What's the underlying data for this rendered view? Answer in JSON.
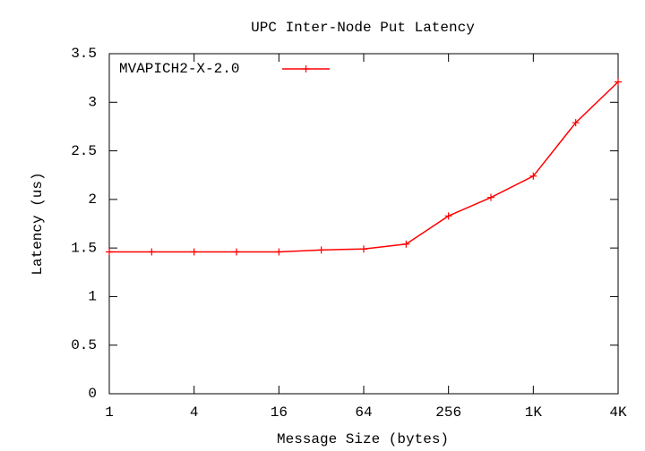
{
  "chart_data": {
    "type": "line",
    "title": "UPC Inter-Node Put Latency",
    "x_label": "Message Size (bytes)",
    "y_label": "Latency (us)",
    "x": [
      1,
      2,
      4,
      8,
      16,
      32,
      64,
      128,
      256,
      512,
      1024,
      2048,
      4096
    ],
    "series": [
      {
        "name": "MVAPICH2-X-2.0",
        "color": "#ff0000",
        "values": [
          1.46,
          1.46,
          1.46,
          1.46,
          1.46,
          1.48,
          1.49,
          1.54,
          1.83,
          2.02,
          2.24,
          2.79,
          3.21
        ]
      }
    ],
    "xscale": "log",
    "xlim": [
      1,
      4096
    ],
    "xticks": [
      1,
      4,
      16,
      64,
      256,
      {
        "value": 1024,
        "label": "1K"
      },
      {
        "value": 4096,
        "label": "4K"
      }
    ],
    "ylim": [
      0,
      3.5
    ],
    "yticks": [
      0,
      0.5,
      1,
      1.5,
      2,
      2.5,
      3,
      3.5
    ],
    "legend": "top-left"
  }
}
